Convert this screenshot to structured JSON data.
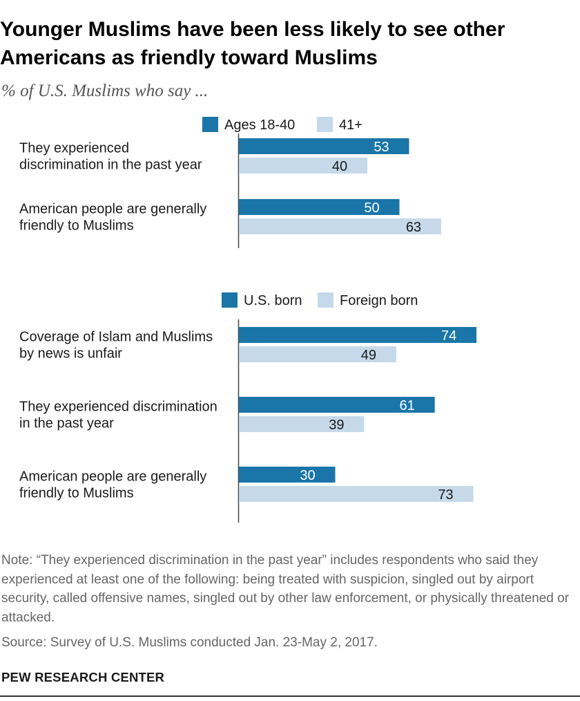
{
  "header": {
    "title": "Younger Muslims have been less likely to see other\nAmericans as friendly toward Muslims",
    "subtitle": "% of U.S. Muslims who say ..."
  },
  "chart_data": [
    {
      "type": "bar",
      "orientation": "horizontal",
      "categories": [
        "They experienced\ndiscrimination in the past year",
        "American people are generally\nfriendly to Muslims"
      ],
      "series": [
        {
          "name": "Ages 18-40",
          "values": [
            53,
            50
          ],
          "color": "#1a75a8",
          "label_color": "#ffffff"
        },
        {
          "name": "41+",
          "values": [
            40,
            63
          ],
          "color": "#c5d9ea",
          "label_color": "#1a1a1a"
        }
      ],
      "xlim": [
        0,
        100
      ],
      "legend_position": "top",
      "grid": false
    },
    {
      "type": "bar",
      "orientation": "horizontal",
      "categories": [
        "Coverage of Islam and Muslims\nby news is unfair",
        "They experienced discrimination\nin the past year",
        "American people are generally\nfriendly to Muslims"
      ],
      "series": [
        {
          "name": "U.S. born",
          "values": [
            74,
            61,
            30
          ],
          "color": "#1a75a8",
          "label_color": "#ffffff"
        },
        {
          "name": "Foreign born",
          "values": [
            49,
            39,
            73
          ],
          "color": "#c5d9ea",
          "label_color": "#1a1a1a"
        }
      ],
      "xlim": [
        0,
        100
      ],
      "legend_position": "top",
      "grid": false
    }
  ],
  "footer": {
    "note": "Note: “They experienced discrimination in the past year” includes respondents who said they experienced at least one of the following: being treated with suspicion, singled out by airport security, called offensive names, singled out by other law enforcement, or physically threatened or attacked.",
    "source": "Source: Survey of U.S. Muslims conducted Jan. 23-May 2, 2017.",
    "brand": "PEW RESEARCH CENTER"
  }
}
